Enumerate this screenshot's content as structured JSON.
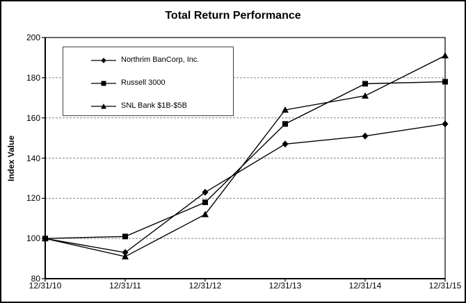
{
  "window": {
    "background_color": "#ffffff",
    "border_color": "#000000"
  },
  "chart_data": {
    "type": "line",
    "title": "Total Return Performance",
    "xlabel": "",
    "ylabel": "Index Value",
    "categories": [
      "12/31/10",
      "12/31/11",
      "12/31/12",
      "12/31/13",
      "12/31/14",
      "12/31/15"
    ],
    "y_ticks": [
      80,
      100,
      120,
      140,
      160,
      180,
      200
    ],
    "ylim": [
      80,
      200
    ],
    "grid": "horizontal dashed gridlines at 100-180, none at axis limits",
    "gridline_color": "#888888",
    "line_color": "#000000",
    "legend_position": "inside upper-left",
    "series": [
      {
        "name": "Northrim BanCorp, Inc.",
        "marker": "diamond",
        "color": "#000000",
        "values": [
          100,
          93,
          123,
          147,
          151,
          157
        ]
      },
      {
        "name": "Russell 3000",
        "marker": "square",
        "color": "#000000",
        "values": [
          100,
          101,
          118,
          157,
          177,
          178
        ]
      },
      {
        "name": "SNL Bank $1B-$5B",
        "marker": "triangle",
        "color": "#000000",
        "values": [
          100,
          91,
          112,
          164,
          171,
          191
        ]
      }
    ]
  }
}
